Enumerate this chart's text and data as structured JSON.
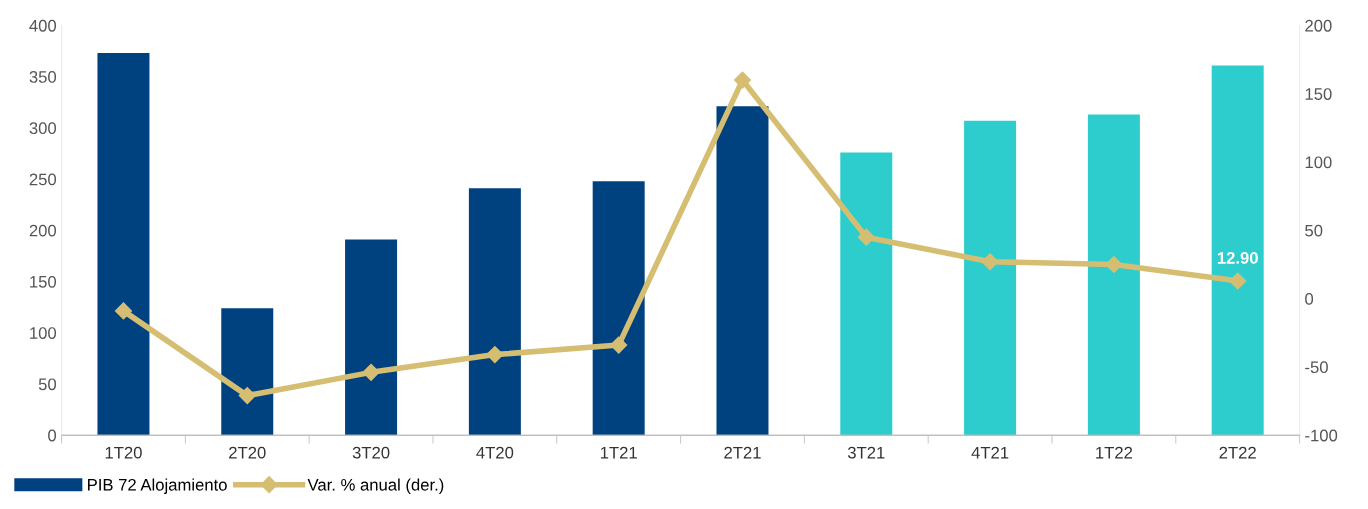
{
  "chart_data": {
    "type": "bar",
    "categories": [
      "1T20",
      "2T20",
      "3T20",
      "4T20",
      "1T21",
      "2T21",
      "3T21",
      "4T21",
      "1T22",
      "2T22"
    ],
    "series": [
      {
        "name": "PIB 72 Alojamiento",
        "colors": [
          "#00427f",
          "#00427f",
          "#00427f",
          "#00427f",
          "#00427f",
          "#00427f",
          "#2ecdcd",
          "#2ecdcd",
          "#2ecdcd",
          "#2ecdcd"
        ],
        "values": [
          373,
          124,
          191,
          241,
          248,
          321,
          276,
          307,
          313,
          361
        ]
      },
      {
        "name": "Var. % anual (der.)",
        "type": "line",
        "axis": "y2",
        "color": "#d5be72",
        "marker": "diamond",
        "line_style": "solid",
        "values": [
          -9,
          -71,
          -54,
          -41,
          -34,
          160,
          45,
          27,
          25,
          12.9
        ],
        "value_labels": [
          null,
          null,
          null,
          null,
          null,
          null,
          null,
          null,
          null,
          "12.90"
        ]
      }
    ],
    "ylim": [
      0,
      400
    ],
    "yticks": [
      0,
      50,
      100,
      150,
      200,
      250,
      300,
      350,
      400
    ],
    "y2lim": [
      -100,
      200
    ],
    "y2ticks": [
      -100,
      -50,
      0,
      50,
      100,
      150,
      200
    ],
    "grid": false,
    "legend": "bottom left"
  }
}
